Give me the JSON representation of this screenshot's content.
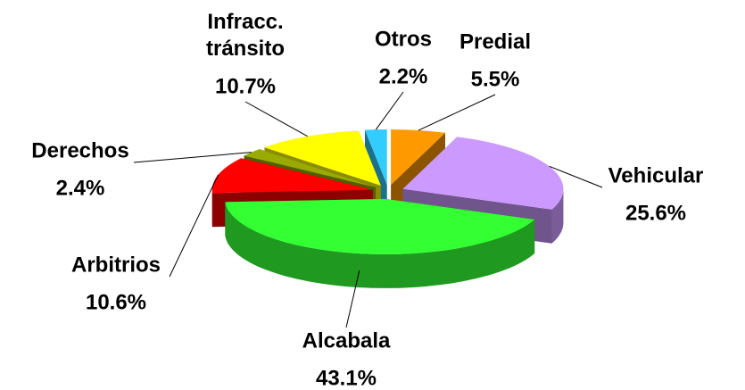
{
  "chart_data": {
    "type": "pie3d",
    "categories": [
      "Predial",
      "Vehicular",
      "Alcabala",
      "Arbitrios",
      "Derechos",
      "Infracc. tránsito",
      "Otros"
    ],
    "values": [
      5.5,
      25.6,
      43.1,
      10.6,
      2.4,
      10.7,
      2.2
    ],
    "value_labels": [
      "5.5%",
      "25.6%",
      "43.1%",
      "10.6%",
      "2.4%",
      "10.7%",
      "2.2%"
    ],
    "colors": [
      "#ff9900",
      "#cc99ff",
      "#33ff33",
      "#ff0000",
      "#99aa00",
      "#ffff00",
      "#33ccff"
    ]
  }
}
